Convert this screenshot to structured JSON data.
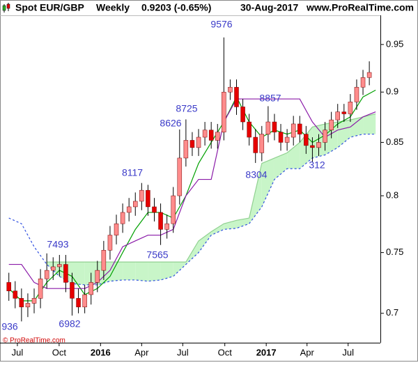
{
  "chart_data": {
    "type": "candlestick",
    "title": "Spot EUR/GBP",
    "period": "Weekly",
    "last_quote": "0.9203 (-0.65%)",
    "date": "30-Aug-2017",
    "site": "www.ProRealTime.com",
    "footer": "© ProRealTime.com",
    "log_scale": true,
    "grid": false,
    "ylim": [
      0.677,
      0.982
    ],
    "yticks": [
      0.95,
      0.9,
      0.85,
      0.8,
      0.75,
      0.7
    ],
    "xlim": [
      -2.8,
      117.5
    ],
    "xticks": [
      {
        "value": 2.7,
        "label": "Jul"
      },
      {
        "value": 15.9,
        "label": "Oct"
      },
      {
        "value": 29,
        "label": "2016"
      },
      {
        "value": 42,
        "label": "Apr"
      },
      {
        "value": 55,
        "label": "Jul"
      },
      {
        "value": 68.3,
        "label": "Oct"
      },
      {
        "value": 81.4,
        "label": "2017"
      },
      {
        "value": 94.3,
        "label": "Apr"
      },
      {
        "value": 107.3,
        "label": "Jul"
      }
    ],
    "up_color": "#ff8c8c",
    "down_color": "#e60000",
    "wick_color": "#000000",
    "x": [
      0,
      2,
      4,
      6,
      8,
      10,
      12,
      14,
      16,
      18,
      20,
      22,
      24,
      26,
      28,
      30,
      32,
      34,
      36,
      38,
      40,
      42,
      44,
      46,
      48,
      50,
      52,
      54,
      56,
      58,
      60,
      62,
      64,
      66,
      68,
      70,
      72,
      74,
      76,
      78,
      80,
      82,
      84,
      86,
      88,
      90,
      92,
      94,
      96,
      98,
      100,
      102,
      104,
      106,
      108,
      110,
      112,
      114
    ],
    "open": [
      0.725,
      0.718,
      0.712,
      0.705,
      0.708,
      0.712,
      0.728,
      0.735,
      0.738,
      0.74,
      0.725,
      0.712,
      0.705,
      0.715,
      0.725,
      0.735,
      0.752,
      0.765,
      0.775,
      0.785,
      0.79,
      0.795,
      0.805,
      0.79,
      0.785,
      0.77,
      0.775,
      0.8,
      0.835,
      0.852,
      0.845,
      0.855,
      0.862,
      0.852,
      0.86,
      0.9,
      0.905,
      0.885,
      0.87,
      0.855,
      0.84,
      0.858,
      0.87,
      0.86,
      0.85,
      0.855,
      0.868,
      0.858,
      0.847,
      0.845,
      0.85,
      0.862,
      0.872,
      0.88,
      0.878,
      0.89,
      0.905,
      0.915
    ],
    "high": [
      0.733,
      0.726,
      0.72,
      0.716,
      0.72,
      0.736,
      0.7493,
      0.746,
      0.748,
      0.748,
      0.733,
      0.72,
      0.723,
      0.733,
      0.743,
      0.76,
      0.773,
      0.783,
      0.793,
      0.798,
      0.803,
      0.8117,
      0.81,
      0.798,
      0.793,
      0.783,
      0.808,
      0.8626,
      0.8725,
      0.86,
      0.863,
      0.87,
      0.87,
      0.868,
      0.9576,
      0.913,
      0.913,
      0.893,
      0.878,
      0.863,
      0.866,
      0.8857,
      0.878,
      0.868,
      0.863,
      0.876,
      0.876,
      0.866,
      0.855,
      0.858,
      0.87,
      0.88,
      0.888,
      0.888,
      0.898,
      0.913,
      0.923,
      0.932
    ],
    "low": [
      0.71,
      0.704,
      0.6936,
      0.697,
      0.7,
      0.704,
      0.72,
      0.727,
      0.73,
      0.717,
      0.6982,
      0.7,
      0.7,
      0.707,
      0.717,
      0.727,
      0.744,
      0.757,
      0.767,
      0.777,
      0.782,
      0.787,
      0.782,
      0.777,
      0.7565,
      0.762,
      0.767,
      0.792,
      0.827,
      0.837,
      0.837,
      0.847,
      0.844,
      0.844,
      0.852,
      0.892,
      0.877,
      0.862,
      0.847,
      0.8304,
      0.832,
      0.85,
      0.852,
      0.842,
      0.842,
      0.847,
      0.85,
      0.839,
      0.8312,
      0.837,
      0.842,
      0.854,
      0.864,
      0.87,
      0.87,
      0.882,
      0.897,
      0.907
    ],
    "close": [
      0.718,
      0.712,
      0.705,
      0.708,
      0.712,
      0.728,
      0.735,
      0.738,
      0.74,
      0.725,
      0.712,
      0.705,
      0.715,
      0.725,
      0.735,
      0.752,
      0.765,
      0.775,
      0.785,
      0.79,
      0.795,
      0.805,
      0.79,
      0.785,
      0.77,
      0.775,
      0.8,
      0.835,
      0.852,
      0.845,
      0.855,
      0.862,
      0.852,
      0.86,
      0.9,
      0.905,
      0.885,
      0.87,
      0.855,
      0.84,
      0.858,
      0.87,
      0.86,
      0.85,
      0.855,
      0.868,
      0.858,
      0.847,
      0.845,
      0.85,
      0.862,
      0.872,
      0.88,
      0.878,
      0.89,
      0.905,
      0.915,
      0.9203
    ],
    "indicator_x": [
      0,
      4,
      8,
      12,
      16,
      20,
      24,
      28,
      32,
      36,
      40,
      44,
      48,
      52,
      56,
      60,
      64,
      68,
      72,
      76,
      80,
      84,
      88,
      92,
      96,
      100,
      104,
      108,
      112,
      116
    ],
    "lines": [
      {
        "color": "#00a000",
        "dashed": false,
        "values": [
          0.72,
          0.71,
          0.71,
          0.725,
          0.735,
          0.73,
          0.715,
          0.72,
          0.73,
          0.75,
          0.77,
          0.785,
          0.785,
          0.78,
          0.8,
          0.83,
          0.85,
          0.87,
          0.895,
          0.87,
          0.855,
          0.862,
          0.858,
          0.862,
          0.85,
          0.857,
          0.868,
          0.875,
          0.895,
          0.902
        ]
      },
      {
        "color": "#8a1aa8",
        "dashed": false,
        "values": [
          0.74,
          0.74,
          0.725,
          0.72,
          0.72,
          0.72,
          0.72,
          0.725,
          0.735,
          0.755,
          0.76,
          0.765,
          0.765,
          0.77,
          0.8,
          0.815,
          0.815,
          0.87,
          0.893,
          0.893,
          0.893,
          0.893,
          0.893,
          0.893,
          0.87,
          0.855,
          0.862,
          0.865,
          0.875,
          0.88
        ]
      }
    ],
    "cloud": {
      "span_a": {
        "color": "#90d090",
        "values": [
          null,
          null,
          null,
          0.742,
          0.742,
          0.742,
          0.742,
          0.742,
          0.742,
          0.742,
          0.742,
          0.742,
          0.742,
          0.742,
          0.742,
          0.76,
          0.768,
          0.775,
          0.778,
          0.78,
          0.83,
          0.835,
          0.84,
          0.85,
          0.865,
          0.868,
          0.87,
          0.872,
          0.875,
          0.878
        ]
      },
      "span_b": {
        "color": "#3050e0",
        "values": [
          0.78,
          0.775,
          0.755,
          0.74,
          0.73,
          0.724,
          0.723,
          0.723,
          0.726,
          0.727,
          0.727,
          0.726,
          0.727,
          0.73,
          0.74,
          0.75,
          0.765,
          0.77,
          0.771,
          0.775,
          0.79,
          0.815,
          0.825,
          0.825,
          0.835,
          0.838,
          0.845,
          0.855,
          0.858,
          0.858
        ]
      },
      "bull_fill": "#c8f5c8",
      "bear_fill": "#ff9ee0"
    },
    "annotations": [
      "936",
      "7493",
      "6982",
      "8117",
      "7565",
      "8626",
      "8725",
      "9576",
      "8857",
      "8304",
      "312"
    ],
    "annotation_color": "#3a3ac8"
  }
}
